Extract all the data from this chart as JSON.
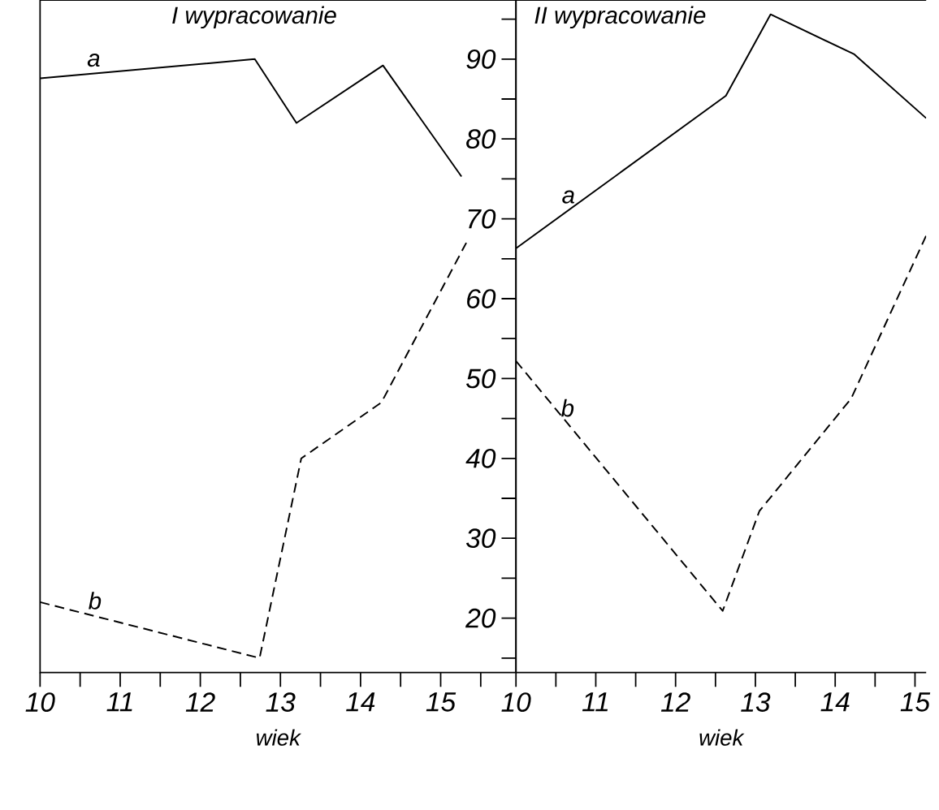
{
  "chart_data": [
    {
      "type": "line",
      "title": "I wypracowanie",
      "xlabel": "wiek",
      "tick_labels": "x",
      "xlim": [
        10,
        15.94
      ],
      "ylim": [
        13.2,
        97.4
      ],
      "xticks": [
        10,
        {
          "value": 10.5,
          "label": null
        },
        11,
        {
          "value": 11.5,
          "label": null
        },
        12,
        {
          "value": 12.5,
          "label": null
        },
        13,
        {
          "value": 13.5,
          "label": null
        },
        14,
        {
          "value": 14.5,
          "label": null
        },
        15,
        {
          "value": 15.5,
          "label": null
        }
      ],
      "series": [
        {
          "name": "a",
          "color": "#000000",
          "line_style": "solid",
          "x": [
            10,
            12.68,
            13.2,
            14.28,
            15.26
          ],
          "values": [
            87.6,
            90,
            82,
            89.2,
            75.3
          ]
        },
        {
          "name": "b",
          "color": "#000000",
          "line_style": "dashed",
          "x": [
            10,
            12.74,
            13.26,
            14.26,
            15.32
          ],
          "values": [
            22,
            15,
            40,
            47,
            67
          ]
        }
      ]
    },
    {
      "type": "line",
      "title": "II wypracowanie",
      "xlabel": "wiek",
      "xlim": [
        10,
        15.14
      ],
      "ylim": [
        13.2,
        97.4
      ],
      "xticks": [
        10,
        {
          "value": 10.5,
          "label": null
        },
        11,
        {
          "value": 11.5,
          "label": null
        },
        12,
        {
          "value": 12.5,
          "label": null
        },
        13,
        {
          "value": 13.5,
          "label": null
        },
        14,
        {
          "value": 14.5,
          "label": null
        },
        15
      ],
      "yticks": [
        {
          "value": 15,
          "label": null
        },
        20,
        {
          "value": 25,
          "label": null
        },
        30,
        {
          "value": 35,
          "label": null
        },
        40,
        {
          "value": 45,
          "label": null
        },
        50,
        {
          "value": 55,
          "label": null
        },
        60,
        {
          "value": 65,
          "label": null
        },
        70,
        {
          "value": 75,
          "label": null
        },
        80,
        {
          "value": 85,
          "label": null
        },
        90,
        {
          "value": 95,
          "label": null
        }
      ],
      "series": [
        {
          "name": "a",
          "color": "#000000",
          "line_style": "solid",
          "x": [
            10,
            12.63,
            13.19,
            14.24,
            15.14
          ],
          "values": [
            66.3,
            85.4,
            95.6,
            90.6,
            82.6
          ]
        },
        {
          "name": "b",
          "color": "#000000",
          "line_style": "dashed",
          "x": [
            10,
            12.59,
            13.05,
            14.2,
            15.14
          ],
          "values": [
            52.2,
            20.9,
            33.4,
            47.5,
            67.9
          ]
        }
      ]
    }
  ]
}
